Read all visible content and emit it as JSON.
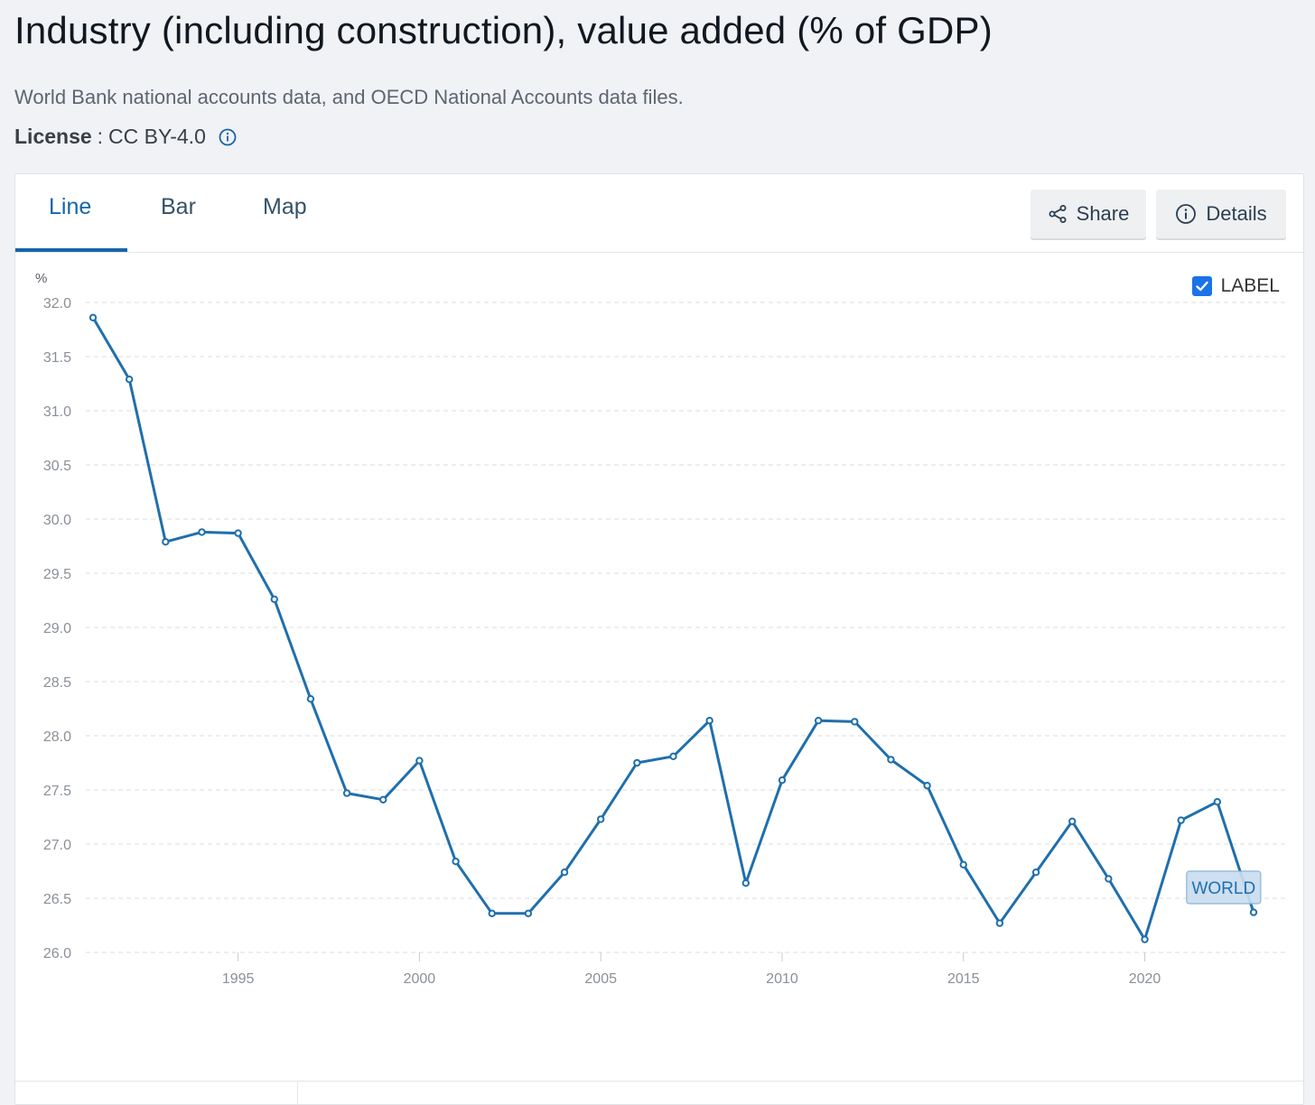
{
  "page": {
    "title": "Industry (including construction), value added (% of GDP)",
    "source": "World Bank national accounts data, and OECD National Accounts data files.",
    "license_label": "License",
    "license_sep": ":",
    "license_value": "CC BY-4.0"
  },
  "tabs": [
    {
      "label": "Line",
      "active": true
    },
    {
      "label": "Bar",
      "active": false
    },
    {
      "label": "Map",
      "active": false
    }
  ],
  "actions": {
    "share_label": "Share",
    "details_label": "Details"
  },
  "toggle": {
    "label": "LABEL",
    "checked": true
  },
  "colors": {
    "accent": "#1565a8",
    "line": "#1f6fad",
    "label_bg": "#c9ddef"
  },
  "chart_data": {
    "type": "line",
    "title": "Industry (including construction), value added (% of GDP)",
    "ylabel": "%",
    "xlabel": "",
    "ylim": [
      26.0,
      32.0
    ],
    "xlim": [
      1991,
      2023
    ],
    "y_ticks": [
      "32.0",
      "31.5",
      "31.0",
      "30.5",
      "30.0",
      "29.5",
      "29.0",
      "28.5",
      "28.0",
      "27.5",
      "27.0",
      "26.5",
      "26.0"
    ],
    "x_ticks": [
      "1995",
      "2000",
      "2005",
      "2010",
      "2015",
      "2020"
    ],
    "grid": true,
    "series": [
      {
        "name": "WORLD",
        "x": [
          1991,
          1992,
          1993,
          1994,
          1995,
          1996,
          1997,
          1998,
          1999,
          2000,
          2001,
          2002,
          2003,
          2004,
          2005,
          2006,
          2007,
          2008,
          2009,
          2010,
          2011,
          2012,
          2013,
          2014,
          2015,
          2016,
          2017,
          2018,
          2019,
          2020,
          2021,
          2022,
          2023
        ],
        "values": [
          31.86,
          31.29,
          29.79,
          29.88,
          29.87,
          29.26,
          28.34,
          27.47,
          27.41,
          27.77,
          26.84,
          26.36,
          26.36,
          26.74,
          27.23,
          27.75,
          27.81,
          28.14,
          26.64,
          27.59,
          28.14,
          28.13,
          27.78,
          27.54,
          26.81,
          26.27,
          26.74,
          27.21,
          26.68,
          26.12,
          27.22,
          27.39,
          26.37
        ]
      }
    ]
  }
}
